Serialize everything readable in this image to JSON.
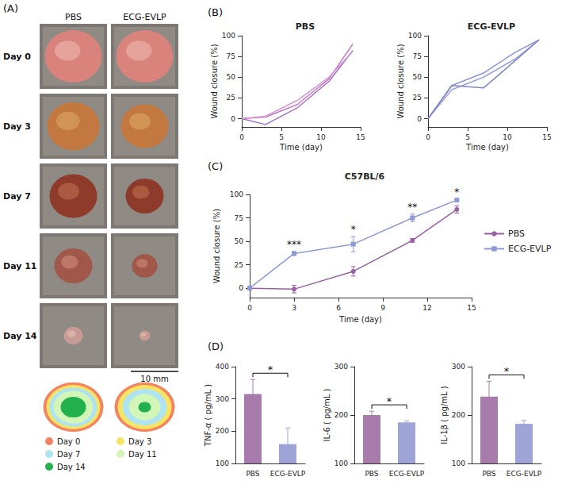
{
  "photo_panel": {
    "panel": "(A)",
    "columns": [
      "PBS",
      "ECG-EVLP"
    ],
    "rows": [
      "Day 0",
      "Day 3",
      "Day 7",
      "Day 11",
      "Day 14"
    ],
    "scale_bar": "10 mm",
    "legend": [
      {
        "label": "Day 0",
        "color": "#f4845f"
      },
      {
        "label": "Day 3",
        "color": "#f7e463"
      },
      {
        "label": "Day 7",
        "color": "#aee3f2"
      },
      {
        "label": "Day 11",
        "color": "#d2f5b8"
      },
      {
        "label": "Day 14",
        "color": "#22b14c"
      }
    ]
  },
  "chart_data": [
    {
      "type": "line",
      "panel": "(B)",
      "title": "PBS",
      "x_label": "Time (day)",
      "y_label": "Wound closure (%)",
      "x": [
        0,
        3,
        7,
        11,
        14
      ],
      "xlim": [
        0,
        15
      ],
      "xticks": [
        0,
        5,
        10,
        15
      ],
      "ylim": [
        -10,
        100
      ],
      "yticks": [
        0,
        25,
        50,
        75,
        100
      ],
      "series": [
        {
          "color": "#c27bc7",
          "values": [
            0,
            2,
            17,
            48,
            90
          ]
        },
        {
          "color": "#a66fc2",
          "values": [
            0,
            -7,
            13,
            45,
            82
          ]
        },
        {
          "color": "#d596d2",
          "values": [
            0,
            3,
            22,
            50,
            81
          ]
        }
      ]
    },
    {
      "type": "line",
      "title": "ECG-EVLP",
      "x_label": "Time (day)",
      "y_label": "Wound closure (%)",
      "x": [
        0,
        3,
        7,
        11,
        14
      ],
      "xlim": [
        0,
        15
      ],
      "xticks": [
        0,
        5,
        10,
        15
      ],
      "ylim": [
        -10,
        100
      ],
      "yticks": [
        0,
        25,
        50,
        75,
        100
      ],
      "series": [
        {
          "color": "#8d93d4",
          "values": [
            0,
            40,
            55,
            80,
            95
          ]
        },
        {
          "color": "#9aa2dc",
          "values": [
            0,
            35,
            50,
            72,
            95
          ]
        },
        {
          "color": "#7f86c9",
          "values": [
            0,
            40,
            37,
            70,
            95
          ]
        }
      ]
    },
    {
      "type": "line",
      "panel": "(C)",
      "title": "C57BL/6",
      "x_label": "Time (day)",
      "y_label": "Wound closure (%)",
      "x": [
        0,
        3,
        7,
        11,
        14
      ],
      "xlim": [
        0,
        15
      ],
      "xticks": [
        0,
        3,
        6,
        9,
        12,
        15
      ],
      "ylim": [
        -10,
        100
      ],
      "yticks": [
        0,
        25,
        50,
        75,
        100
      ],
      "legend": "right",
      "series": [
        {
          "name": "PBS",
          "color": "#9a5ea6",
          "marker": "circle",
          "values": [
            0,
            -1,
            18,
            51,
            84
          ],
          "errors": [
            0,
            4,
            5,
            2,
            4
          ]
        },
        {
          "name": "ECG-EVLP",
          "color": "#8e9ad6",
          "marker": "square",
          "values": [
            0,
            37,
            47,
            75,
            94
          ],
          "errors": [
            0,
            2,
            8,
            4,
            1
          ]
        }
      ],
      "annotations": [
        {
          "x": 3,
          "label": "***"
        },
        {
          "x": 7,
          "label": "*"
        },
        {
          "x": 11,
          "label": "**"
        },
        {
          "x": 14,
          "label": "*"
        }
      ]
    },
    {
      "type": "bar",
      "panel": "(D)",
      "y_label": "TNF-α ( pg/mL )",
      "categories": [
        "PBS",
        "ECG-EVLP"
      ],
      "values": [
        315,
        160
      ],
      "errors": [
        45,
        50
      ],
      "colors": [
        "#a77bac",
        "#9fa4d6"
      ],
      "ylim": [
        100,
        400
      ],
      "yticks": [
        100,
        200,
        300,
        400
      ],
      "annotations": [
        {
          "label": "*"
        }
      ]
    },
    {
      "type": "bar",
      "y_label": "IL-6 ( pg/mL )",
      "categories": [
        "PBS",
        "ECG-EVLP"
      ],
      "values": [
        200,
        185
      ],
      "errors": [
        8,
        3
      ],
      "colors": [
        "#a77bac",
        "#9fa4d6"
      ],
      "ylim": [
        100,
        300
      ],
      "yticks": [
        100,
        200,
        300
      ],
      "annotations": [
        {
          "label": "*"
        }
      ]
    },
    {
      "type": "bar",
      "y_label": "IL-1β ( pg/mL )",
      "categories": [
        "PBS",
        "ECG-EVLP"
      ],
      "values": [
        238,
        182
      ],
      "errors": [
        32,
        7
      ],
      "colors": [
        "#a77bac",
        "#9fa4d6"
      ],
      "ylim": [
        100,
        300
      ],
      "yticks": [
        100,
        200,
        300
      ],
      "annotations": [
        {
          "label": "*"
        }
      ]
    }
  ]
}
